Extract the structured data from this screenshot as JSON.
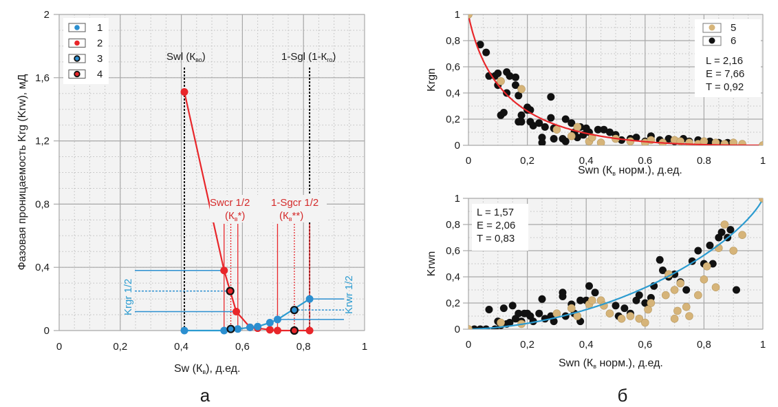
{
  "chart_data": [
    {
      "id": "a",
      "type": "scatter",
      "panel_label": "а",
      "xlabel_main": "Sw (К",
      "xlabel_sub": "в",
      "xlabel_tail": "), д.ед.",
      "ylabel": "Фазовая проницаемость Krg (Krw), мД",
      "xlim": [
        0,
        1
      ],
      "ylim": [
        0,
        2
      ],
      "xticks": [
        0,
        0.2,
        0.4,
        0.6,
        0.8,
        1
      ],
      "xtick_labels": [
        "0",
        "0,2",
        "0,4",
        "0,6",
        "0,8",
        "1"
      ],
      "yticks": [
        0,
        0.4,
        0.8,
        1.2,
        1.6,
        2
      ],
      "ytick_labels": [
        "0",
        "0,4",
        "0,8",
        "1,2",
        "1,6",
        "2"
      ],
      "grid": true,
      "legend": {
        "placement": "top-left",
        "entries": [
          {
            "label": "1",
            "fill": "#2b8fd0",
            "edge": "#2b8fd0"
          },
          {
            "label": "2",
            "fill": "#e8262a",
            "edge": "#e8262a"
          },
          {
            "label": "3",
            "fill": "#2b8fd0",
            "edge": "#111111"
          },
          {
            "label": "4",
            "fill": "#e8262a",
            "edge": "#111111"
          }
        ]
      },
      "series": [
        {
          "name": "1",
          "role": "Krw",
          "color": "#2b8fd0",
          "x": [
            0.41,
            0.54,
            0.585,
            0.625,
            0.65,
            0.69,
            0.715,
            0.82
          ],
          "y": [
            0.0,
            0.0,
            0.01,
            0.02,
            0.025,
            0.05,
            0.07,
            0.2
          ]
        },
        {
          "name": "2",
          "role": "Krg",
          "color": "#e8262a",
          "x": [
            0.41,
            0.54,
            0.58,
            0.625,
            0.65,
            0.69,
            0.715,
            0.82
          ],
          "y": [
            1.51,
            0.38,
            0.12,
            0.02,
            0.015,
            0.005,
            0.0,
            0.0
          ]
        },
        {
          "name": "3",
          "role": "Krw 1/2 point",
          "color": "#2b8fd0",
          "x": [
            0.562,
            0.77
          ],
          "y": [
            0.01,
            0.13
          ]
        },
        {
          "name": "4",
          "role": "Krg 1/2 point",
          "color": "#e8262a",
          "x": [
            0.56,
            0.77
          ],
          "y": [
            0.25,
            0.0
          ]
        }
      ],
      "annotations": {
        "swl_label": "Swl (К",
        "swl_sub": "во",
        "swl_close": ")",
        "swl_x": 0.41,
        "sgl_label": "1-Sgl (1-К",
        "sgl_sub": "го",
        "sgl_close": ")",
        "sgl_x": 0.82,
        "swcr_label": "Swcr 1/2",
        "swcr_k": "(К",
        "swcr_k_sub": "в",
        "swcr_k_tail": "*)",
        "sgcr_label": "1-Sgcr 1/2",
        "sgcr_k": "(К",
        "sgcr_k_sub": "в",
        "sgcr_k_tail": "**)",
        "krgr_label": "Krgr 1/2",
        "krwr_label": "Krwr 1/2",
        "swcr_lines_x": [
          0.54,
          0.562,
          0.585
        ],
        "sgcr_lines_x": [
          0.715,
          0.77,
          0.82
        ],
        "krgr_levels": [
          0.38,
          0.25,
          0.12
        ],
        "krwr_levels": [
          0.2,
          0.13,
          0.07
        ]
      }
    },
    {
      "id": "b-top",
      "type": "scatter",
      "panel_label": "б",
      "ylabel": "Krgn",
      "xlabel_main": "Swn (К",
      "xlabel_sub": "в",
      "xlabel_tail": " норм.), д.ед.",
      "xlim": [
        0,
        1
      ],
      "ylim": [
        0,
        1
      ],
      "xticks": [
        0,
        0.2,
        0.4,
        0.6,
        0.8,
        1
      ],
      "xtick_labels": [
        "0",
        "0,2",
        "0,4",
        "0.6",
        "0.8",
        "1"
      ],
      "yticks": [
        0,
        0.2,
        0.4,
        0.6,
        0.8,
        1
      ],
      "ytick_labels": [
        "0",
        "0,2",
        "0,4",
        "0,6",
        "0,8",
        "1"
      ],
      "grid": true,
      "legend": {
        "placement": "top-right",
        "entries": [
          {
            "label": "5",
            "fill": "#d6b479"
          },
          {
            "label": "6",
            "fill": "#111111"
          }
        ]
      },
      "params": [
        "L = 2,16",
        "E = 7,66",
        "T = 0,92"
      ],
      "fit": {
        "model": "LET",
        "L": 2.16,
        "E": 7.66,
        "T": 0.92,
        "direction": "decreasing",
        "color": "#e8262a"
      },
      "series": [
        {
          "name": "5",
          "color": "#d6b479",
          "x": [
            0,
            0.11,
            0.18,
            0.3,
            0.35,
            0.37,
            0.41,
            0.42,
            0.45,
            0.5,
            0.55,
            0.6,
            0.62,
            0.66,
            0.7,
            0.72,
            0.75,
            0.78,
            0.8,
            0.84,
            0.87,
            0.9,
            0.93,
            1.0
          ],
          "y": [
            1.0,
            0.49,
            0.43,
            0.12,
            0.07,
            0.14,
            0.03,
            0.06,
            0.02,
            0.05,
            0.03,
            0.02,
            0.04,
            0.02,
            0.04,
            0.03,
            0.02,
            0.01,
            0.03,
            0.02,
            0.01,
            0.02,
            0.01,
            0.0
          ]
        },
        {
          "name": "6",
          "color": "#111111",
          "x": [
            0.04,
            0.06,
            0.07,
            0.09,
            0.1,
            0.1,
            0.11,
            0.12,
            0.13,
            0.13,
            0.14,
            0.16,
            0.16,
            0.17,
            0.17,
            0.18,
            0.18,
            0.2,
            0.2,
            0.21,
            0.21,
            0.22,
            0.24,
            0.25,
            0.25,
            0.26,
            0.28,
            0.28,
            0.29,
            0.29,
            0.32,
            0.33,
            0.33,
            0.35,
            0.36,
            0.37,
            0.38,
            0.39,
            0.4,
            0.41,
            0.42,
            0.44,
            0.46,
            0.48,
            0.5,
            0.52,
            0.55,
            0.57,
            0.6,
            0.62,
            0.65,
            0.68,
            0.7,
            0.73,
            0.75,
            0.78,
            0.8,
            0.82,
            0.85,
            0.88,
            0.9
          ],
          "y": [
            0.77,
            0.71,
            0.53,
            0.53,
            0.55,
            0.46,
            0.23,
            0.25,
            0.56,
            0.4,
            0.53,
            0.52,
            0.46,
            0.38,
            0.18,
            0.18,
            0.23,
            0.29,
            0.27,
            0.27,
            0.18,
            0.15,
            0.17,
            0.06,
            0.02,
            0.14,
            0.37,
            0.21,
            0.13,
            0.05,
            0.05,
            0.2,
            0.03,
            0.17,
            0.1,
            0.06,
            0.14,
            0.08,
            0.13,
            0.1,
            0.06,
            0.12,
            0.12,
            0.1,
            0.08,
            0.04,
            0.05,
            0.06,
            0.03,
            0.07,
            0.04,
            0.05,
            0.03,
            0.05,
            0.03,
            0.04,
            0.02,
            0.03,
            0.02,
            0.02,
            0.01
          ]
        }
      ]
    },
    {
      "id": "b-bottom",
      "type": "scatter",
      "ylabel": "Krwn",
      "xlabel_main": "Swn (К",
      "xlabel_sub": "в",
      "xlabel_tail": " норм.), д.ед.",
      "xlim": [
        0,
        1
      ],
      "ylim": [
        0,
        1
      ],
      "xticks": [
        0,
        0.2,
        0.4,
        0.6,
        0.8,
        1
      ],
      "xtick_labels": [
        "0",
        "0,2",
        "0,4",
        "0,6",
        "0,8",
        "1"
      ],
      "yticks": [
        0,
        0.2,
        0.4,
        0.6,
        0.8,
        1
      ],
      "ytick_labels": [
        "0",
        "0,2",
        "0,4",
        "0,6",
        "0,8",
        "1"
      ],
      "grid": true,
      "params": [
        "L = 1,57",
        "E = 2,06",
        "T = 0,83"
      ],
      "fit": {
        "model": "LET",
        "L": 1.57,
        "E": 2.06,
        "T": 0.83,
        "direction": "increasing",
        "color": "#2b9bd0"
      },
      "series": [
        {
          "name": "5",
          "color": "#d6b479",
          "x": [
            0,
            0.11,
            0.18,
            0.3,
            0.35,
            0.37,
            0.41,
            0.42,
            0.45,
            0.46,
            0.48,
            0.52,
            0.55,
            0.58,
            0.6,
            0.61,
            0.62,
            0.67,
            0.68,
            0.7,
            0.7,
            0.71,
            0.72,
            0.74,
            0.75,
            0.78,
            0.8,
            0.81,
            0.84,
            0.85,
            0.87,
            0.9,
            0.93,
            1.0
          ],
          "y": [
            0.0,
            0.05,
            0.04,
            0.12,
            0.16,
            0.1,
            0.19,
            0.22,
            0.22,
            0.18,
            0.12,
            0.08,
            0.1,
            0.08,
            0.05,
            0.15,
            0.2,
            0.26,
            0.42,
            0.3,
            0.08,
            0.14,
            0.35,
            0.17,
            0.1,
            0.26,
            0.38,
            0.48,
            0.32,
            0.62,
            0.8,
            0.6,
            0.72,
            1.0
          ]
        },
        {
          "name": "6",
          "color": "#111111",
          "x": [
            0.02,
            0.04,
            0.06,
            0.07,
            0.09,
            0.1,
            0.11,
            0.12,
            0.13,
            0.14,
            0.15,
            0.16,
            0.17,
            0.18,
            0.19,
            0.2,
            0.21,
            0.22,
            0.24,
            0.25,
            0.26,
            0.28,
            0.29,
            0.3,
            0.32,
            0.32,
            0.33,
            0.35,
            0.36,
            0.38,
            0.38,
            0.4,
            0.41,
            0.43,
            0.45,
            0.46,
            0.48,
            0.5,
            0.51,
            0.53,
            0.55,
            0.57,
            0.58,
            0.6,
            0.62,
            0.63,
            0.65,
            0.66,
            0.68,
            0.7,
            0.72,
            0.74,
            0.76,
            0.78,
            0.8,
            0.82,
            0.83,
            0.85,
            0.86,
            0.88,
            0.89,
            0.91
          ],
          "y": [
            0.0,
            0.0,
            0.0,
            0.15,
            0.0,
            0.06,
            0.03,
            0.16,
            0.04,
            0.05,
            0.18,
            0.08,
            0.12,
            0.06,
            0.12,
            0.12,
            0.1,
            0.06,
            0.12,
            0.23,
            0.08,
            0.1,
            0.06,
            0.12,
            0.28,
            0.25,
            0.1,
            0.19,
            0.12,
            0.22,
            0.06,
            0.22,
            0.33,
            0.28,
            0.22,
            0.18,
            0.12,
            0.18,
            0.1,
            0.16,
            0.12,
            0.22,
            0.26,
            0.2,
            0.24,
            0.33,
            0.53,
            0.45,
            0.4,
            0.42,
            0.36,
            0.3,
            0.52,
            0.6,
            0.5,
            0.64,
            0.5,
            0.7,
            0.74,
            0.7,
            0.76,
            0.3
          ]
        }
      ]
    }
  ]
}
